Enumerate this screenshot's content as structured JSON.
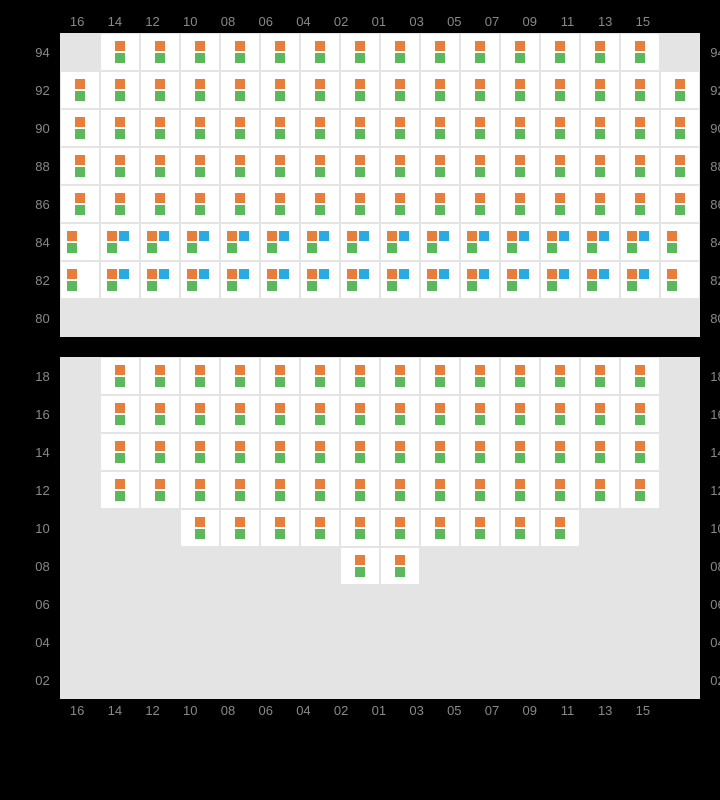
{
  "colors": {
    "orange": "#e67e3c",
    "green": "#5cb85c",
    "blue": "#29abe2",
    "cell_bg": "#ffffff",
    "grid_bg": "#e4e4e4",
    "label_color": "#888888",
    "page_bg": "#000000"
  },
  "columns": [
    "16",
    "14",
    "12",
    "10",
    "08",
    "06",
    "04",
    "02",
    "01",
    "03",
    "05",
    "07",
    "09",
    "11",
    "13",
    "15"
  ],
  "top": {
    "rows": [
      "94",
      "92",
      "90",
      "88",
      "86",
      "84",
      "82",
      "80"
    ],
    "cells": {
      "94": {
        "active": [
          1,
          2,
          3,
          4,
          5,
          6,
          7,
          8,
          9,
          10,
          11,
          12,
          13,
          14
        ],
        "pattern": "og"
      },
      "92": {
        "active": [
          0,
          1,
          2,
          3,
          4,
          5,
          6,
          7,
          8,
          9,
          10,
          11,
          12,
          13,
          14,
          15
        ],
        "pattern": "og"
      },
      "90": {
        "active": [
          0,
          1,
          2,
          3,
          4,
          5,
          6,
          7,
          8,
          9,
          10,
          11,
          12,
          13,
          14,
          15
        ],
        "pattern": "og"
      },
      "88": {
        "active": [
          0,
          1,
          2,
          3,
          4,
          5,
          6,
          7,
          8,
          9,
          10,
          11,
          12,
          13,
          14,
          15
        ],
        "pattern": "og"
      },
      "86": {
        "active": [
          0,
          1,
          2,
          3,
          4,
          5,
          6,
          7,
          8,
          9,
          10,
          11,
          12,
          13,
          14,
          15
        ],
        "pattern": "og"
      },
      "84": {
        "active": [
          0,
          1,
          2,
          3,
          4,
          5,
          6,
          7,
          8,
          9,
          10,
          11,
          12,
          13,
          14,
          15
        ],
        "pattern": "ogb",
        "blue_cols": [
          1,
          2,
          3,
          4,
          5,
          6,
          7,
          8,
          9,
          10,
          11,
          12,
          13,
          14
        ]
      },
      "82": {
        "active": [
          0,
          1,
          2,
          3,
          4,
          5,
          6,
          7,
          8,
          9,
          10,
          11,
          12,
          13,
          14,
          15
        ],
        "pattern": "ogb",
        "blue_cols": [
          1,
          2,
          3,
          4,
          5,
          6,
          7,
          8,
          9,
          10,
          11,
          12,
          13,
          14
        ]
      },
      "80": {
        "active": [],
        "pattern": "none"
      }
    }
  },
  "bottom": {
    "rows": [
      "18",
      "16",
      "14",
      "12",
      "10",
      "08",
      "06",
      "04",
      "02"
    ],
    "cells": {
      "18": {
        "active": [
          1,
          2,
          3,
          4,
          5,
          6,
          7,
          8,
          9,
          10,
          11,
          12,
          13,
          14
        ],
        "pattern": "og"
      },
      "16": {
        "active": [
          1,
          2,
          3,
          4,
          5,
          6,
          7,
          8,
          9,
          10,
          11,
          12,
          13,
          14
        ],
        "pattern": "og"
      },
      "14": {
        "active": [
          1,
          2,
          3,
          4,
          5,
          6,
          7,
          8,
          9,
          10,
          11,
          12,
          13,
          14
        ],
        "pattern": "og"
      },
      "12": {
        "active": [
          1,
          2,
          3,
          4,
          5,
          6,
          7,
          8,
          9,
          10,
          11,
          12,
          13,
          14
        ],
        "pattern": "og"
      },
      "10": {
        "active": [
          3,
          4,
          5,
          6,
          7,
          8,
          9,
          10,
          11,
          12
        ],
        "pattern": "og"
      },
      "08": {
        "active": [
          7,
          8
        ],
        "pattern": "og"
      },
      "06": {
        "active": [],
        "pattern": "none"
      },
      "04": {
        "active": [],
        "pattern": "none"
      },
      "02": {
        "active": [],
        "pattern": "none"
      }
    }
  }
}
